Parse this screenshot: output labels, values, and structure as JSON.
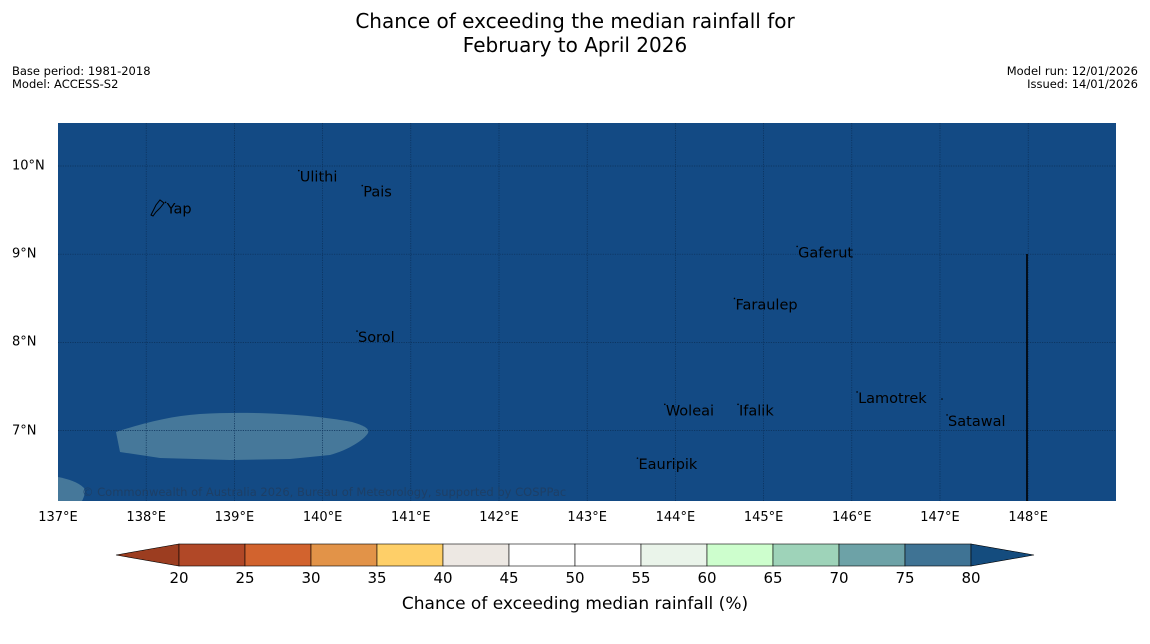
{
  "title": {
    "line1": "Chance of exceeding the median rainfall for",
    "line2": "February to April 2026"
  },
  "meta": {
    "base_period": "Base period: 1981-2018",
    "model": "Model: ACCESS-S2",
    "model_run": "Model run: 12/01/2026",
    "issued": "Issued: 14/01/2026"
  },
  "map": {
    "lon_ticks": [
      {
        "lon": 137,
        "label": "137°E"
      },
      {
        "lon": 138,
        "label": "138°E"
      },
      {
        "lon": 139,
        "label": "139°E"
      },
      {
        "lon": 140,
        "label": "140°E"
      },
      {
        "lon": 141,
        "label": "141°E"
      },
      {
        "lon": 142,
        "label": "142°E"
      },
      {
        "lon": 143,
        "label": "143°E"
      },
      {
        "lon": 144,
        "label": "144°E"
      },
      {
        "lon": 145,
        "label": "145°E"
      },
      {
        "lon": 146,
        "label": "146°E"
      },
      {
        "lon": 147,
        "label": "147°E"
      },
      {
        "lon": 148,
        "label": "148°E"
      }
    ],
    "lat_ticks": [
      {
        "lat": 10,
        "label": "10°N"
      },
      {
        "lat": 9,
        "label": "9°N"
      },
      {
        "lat": 8,
        "label": "8°N"
      },
      {
        "lat": 7,
        "label": "7°N"
      }
    ],
    "places": [
      {
        "name": "Yap",
        "lon": 138.22,
        "lat": 9.52
      },
      {
        "name": "Ulithi",
        "lon": 139.73,
        "lat": 9.88
      },
      {
        "name": "Pais",
        "lon": 140.45,
        "lat": 9.71
      },
      {
        "name": "Gaferut",
        "lon": 145.38,
        "lat": 9.02
      },
      {
        "name": "Faraulep",
        "lon": 144.67,
        "lat": 8.43
      },
      {
        "name": "Sorol",
        "lon": 140.39,
        "lat": 8.06
      },
      {
        "name": "Lamotrek",
        "lon": 146.06,
        "lat": 7.37
      },
      {
        "name": "Woleai",
        "lon": 143.88,
        "lat": 7.23
      },
      {
        "name": "Ifalik",
        "lon": 144.71,
        "lat": 7.23
      },
      {
        "name": "Satawal",
        "lon": 147.08,
        "lat": 7.11
      },
      {
        "name": "Eauripik",
        "lon": 143.57,
        "lat": 6.62
      }
    ],
    "copyright": "© Commonwealth of Australia 2026, Bureau of Meteorology, supported by COSPPac",
    "background_color": "#134a84",
    "low_zone_color": "#46789a"
  },
  "colorbar": {
    "title": "Chance of exceeding median rainfall (%)",
    "low_extend_color": "#9c3d20",
    "high_extend_color": "#144c7e",
    "bins": [
      {
        "color": "#b14827"
      },
      {
        "color": "#d2632e"
      },
      {
        "color": "#e29348"
      },
      {
        "color": "#fecf68"
      },
      {
        "color": "#ede8e3"
      },
      {
        "color": "#ffffff"
      },
      {
        "color": "#ffffff"
      },
      {
        "color": "#eaf4ea"
      },
      {
        "color": "#cdfecd"
      },
      {
        "color": "#9ed3b9"
      },
      {
        "color": "#6da2a7"
      },
      {
        "color": "#3f7394"
      }
    ],
    "tick_labels": [
      "20",
      "25",
      "30",
      "35",
      "40",
      "45",
      "50",
      "55",
      "60",
      "65",
      "70",
      "75",
      "80"
    ]
  }
}
